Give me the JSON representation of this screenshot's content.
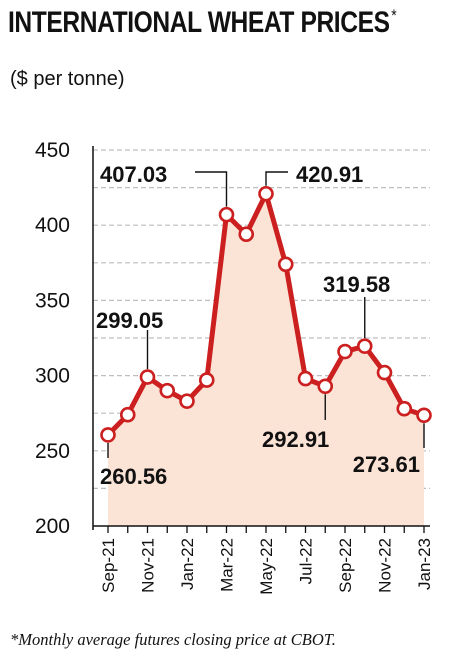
{
  "title": "INTERNATIONAL WHEAT PRICES",
  "title_marker": "*",
  "subtitle": "($ per tonne)",
  "footnote": "*Monthly average futures closing price at CBOT.",
  "colors": {
    "line": "#cc1f1f",
    "fill": "#fbe3d6",
    "marker_fill": "#ffffff",
    "grid": "#bdbdbd",
    "text": "#111111"
  },
  "chart_data": {
    "type": "area",
    "x": [
      "Sep-21",
      "Oct-21",
      "Nov-21",
      "Dec-21",
      "Jan-22",
      "Feb-22",
      "Mar-22",
      "Apr-22",
      "May-22",
      "Jun-22",
      "Jul-22",
      "Aug-22",
      "Sep-22",
      "Oct-22",
      "Nov-22",
      "Dec-22",
      "Jan-23"
    ],
    "values": [
      260.56,
      274,
      299.05,
      290,
      283,
      297,
      407.03,
      394,
      420.91,
      374,
      298,
      292.91,
      316,
      319.58,
      302,
      278,
      273.61
    ],
    "xticks": [
      "Sep-21",
      "Nov-21",
      "Jan-22",
      "Mar-22",
      "May-22",
      "Jul-22",
      "Sep-22",
      "Nov-22",
      "Jan-23"
    ],
    "yticks": [
      200,
      250,
      300,
      350,
      400,
      450
    ],
    "ylim": [
      200,
      450
    ],
    "grid": "horizontal dashed",
    "annotations": [
      {
        "index": 0,
        "label": "260.56"
      },
      {
        "index": 2,
        "label": "299.05"
      },
      {
        "index": 6,
        "label": "407.03"
      },
      {
        "index": 8,
        "label": "420.91"
      },
      {
        "index": 11,
        "label": "292.91"
      },
      {
        "index": 13,
        "label": "319.58"
      },
      {
        "index": 16,
        "label": "273.61"
      }
    ]
  }
}
